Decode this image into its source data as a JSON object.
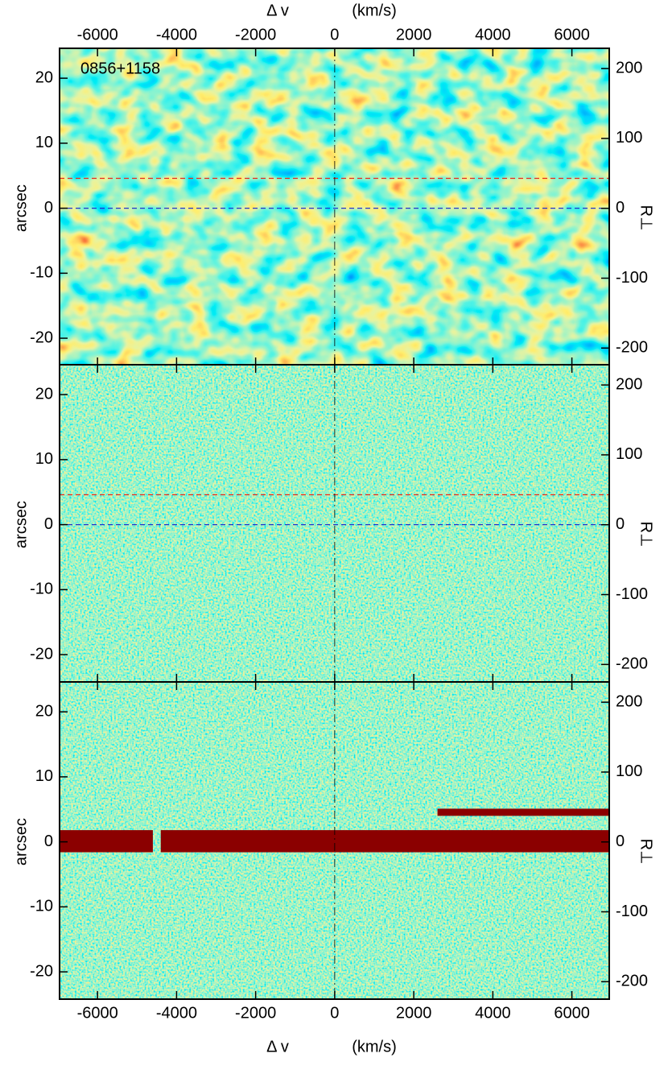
{
  "chart_data": [
    {
      "type": "image",
      "title": "0856+1158",
      "image_style": "smooth",
      "xlim": [
        -6960,
        6945
      ],
      "xticks": [
        -6000,
        -4000,
        -2000,
        0,
        2000,
        4000,
        6000
      ],
      "xtick_labels": "top",
      "xlabel": "Δ v",
      "xunit": "(km/s)",
      "ylabel": "arcsec",
      "ylim": [
        -24.2,
        24.6
      ],
      "yticks": [
        -20,
        -10,
        0,
        10,
        20
      ],
      "y2label": "R⊥",
      "y2lim": [
        -225,
        229
      ],
      "y2ticks": [
        -200,
        -100,
        0,
        100,
        200
      ],
      "hlines": [
        {
          "value": 4.6,
          "color": "#e8291c"
        },
        {
          "value": 0,
          "color": "#2233cc"
        }
      ],
      "vline": 0
    },
    {
      "type": "image",
      "image_style": "noise",
      "xlim": [
        -6960,
        6945
      ],
      "xticks": [
        -6000,
        -4000,
        -2000,
        0,
        2000,
        4000,
        6000
      ],
      "xtick_labels": "none",
      "ylabel": "arcsec",
      "ylim": [
        -24.2,
        24.6
      ],
      "yticks": [
        -20,
        -10,
        0,
        10,
        20
      ],
      "y2label": "R⊥",
      "y2lim": [
        -225,
        229
      ],
      "y2ticks": [
        -200,
        -100,
        0,
        100,
        200
      ],
      "hlines": [
        {
          "value": 4.6,
          "color": "#e8291c"
        },
        {
          "value": 0,
          "color": "#2233cc"
        }
      ],
      "vline": 0
    },
    {
      "type": "image",
      "image_style": "noise",
      "xlim": [
        -6960,
        6945
      ],
      "xticks": [
        -6000,
        -4000,
        -2000,
        0,
        2000,
        4000,
        6000
      ],
      "xtick_labels": "bottom",
      "xlabel": "Δ v",
      "xunit": "(km/s)",
      "ylabel": "arcsec",
      "ylim": [
        -24.2,
        24.6
      ],
      "yticks": [
        -20,
        -10,
        0,
        10,
        20
      ],
      "y2label": "R⊥",
      "y2lim": [
        -225,
        229
      ],
      "y2ticks": [
        -200,
        -100,
        0,
        100,
        200
      ],
      "bands": [
        {
          "x": [
            -6960,
            -4600
          ],
          "y": [
            -1.6,
            1.8
          ],
          "color": "#8b0000"
        },
        {
          "x": [
            -4400,
            6945
          ],
          "y": [
            -1.6,
            1.8
          ],
          "color": "#8b0000"
        },
        {
          "x": [
            2600,
            6945
          ],
          "y": [
            4.0,
            5.1
          ],
          "color": "#8b0000"
        }
      ],
      "vline": 0
    }
  ]
}
